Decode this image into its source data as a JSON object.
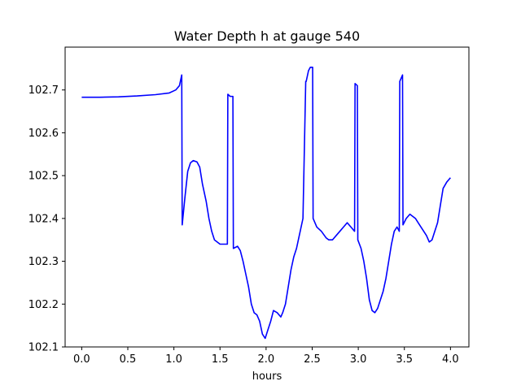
{
  "chart_data": {
    "type": "line",
    "title": "Water Depth h at gauge 540",
    "xlabel": "hours",
    "ylabel": "",
    "xlim": [
      -0.18,
      4.2
    ],
    "ylim": [
      102.1,
      102.8
    ],
    "xticks": [
      0.0,
      0.5,
      1.0,
      1.5,
      2.0,
      2.5,
      3.0,
      3.5,
      4.0
    ],
    "xtick_labels": [
      "0.0",
      "0.5",
      "1.0",
      "1.5",
      "2.0",
      "2.5",
      "3.0",
      "3.5",
      "4.0"
    ],
    "yticks": [
      102.1,
      102.2,
      102.3,
      102.4,
      102.5,
      102.6,
      102.7
    ],
    "ytick_labels": [
      "102.1",
      "102.2",
      "102.3",
      "102.4",
      "102.5",
      "102.6",
      "102.7"
    ],
    "grid": false,
    "series": [
      {
        "color": "#0000ff",
        "x": [
          0.0,
          0.2,
          0.4,
          0.6,
          0.8,
          0.95,
          1.02,
          1.06,
          1.085,
          1.09,
          1.12,
          1.15,
          1.18,
          1.21,
          1.25,
          1.28,
          1.31,
          1.35,
          1.38,
          1.41,
          1.44,
          1.47,
          1.5,
          1.54,
          1.58,
          1.585,
          1.61,
          1.64,
          1.645,
          1.69,
          1.72,
          1.75,
          1.78,
          1.81,
          1.84,
          1.87,
          1.9,
          1.93,
          1.96,
          1.99,
          2.02,
          2.05,
          2.08,
          2.12,
          2.16,
          2.18,
          2.21,
          2.24,
          2.27,
          2.3,
          2.33,
          2.36,
          2.4,
          2.43,
          2.435,
          2.46,
          2.48,
          2.505,
          2.51,
          2.55,
          2.6,
          2.65,
          2.68,
          2.72,
          2.76,
          2.8,
          2.84,
          2.88,
          2.92,
          2.96,
          2.965,
          2.99,
          2.995,
          3.03,
          3.06,
          3.09,
          3.12,
          3.15,
          3.18,
          3.21,
          3.24,
          3.27,
          3.3,
          3.33,
          3.36,
          3.39,
          3.42,
          3.445,
          3.45,
          3.48,
          3.485,
          3.52,
          3.56,
          3.59,
          3.62,
          3.65,
          3.68,
          3.71,
          3.74,
          3.77,
          3.8,
          3.83,
          3.86,
          3.89,
          3.92,
          3.96,
          4.0
        ],
        "y": [
          102.683,
          102.683,
          102.684,
          102.686,
          102.689,
          102.693,
          102.7,
          102.71,
          102.735,
          102.385,
          102.45,
          102.51,
          102.53,
          102.535,
          102.532,
          102.52,
          102.48,
          102.44,
          102.4,
          102.37,
          102.35,
          102.345,
          102.34,
          102.34,
          102.34,
          102.69,
          102.685,
          102.685,
          102.33,
          102.335,
          102.325,
          102.3,
          102.27,
          102.24,
          102.2,
          102.18,
          102.175,
          102.16,
          102.13,
          102.12,
          102.14,
          102.16,
          102.185,
          102.18,
          102.17,
          102.18,
          102.2,
          102.24,
          102.28,
          102.31,
          102.33,
          102.36,
          102.4,
          102.72,
          102.72,
          102.745,
          102.753,
          102.753,
          102.4,
          102.38,
          102.37,
          102.355,
          102.35,
          102.35,
          102.36,
          102.37,
          102.38,
          102.39,
          102.38,
          102.37,
          102.715,
          102.71,
          102.35,
          102.33,
          102.3,
          102.26,
          102.21,
          102.185,
          102.18,
          102.19,
          102.21,
          102.23,
          102.26,
          102.3,
          102.34,
          102.37,
          102.38,
          102.37,
          102.72,
          102.735,
          102.385,
          102.4,
          102.41,
          102.405,
          102.4,
          102.39,
          102.38,
          102.37,
          102.36,
          102.345,
          102.35,
          102.37,
          102.39,
          102.43,
          102.47,
          102.485,
          102.495
        ]
      }
    ]
  }
}
